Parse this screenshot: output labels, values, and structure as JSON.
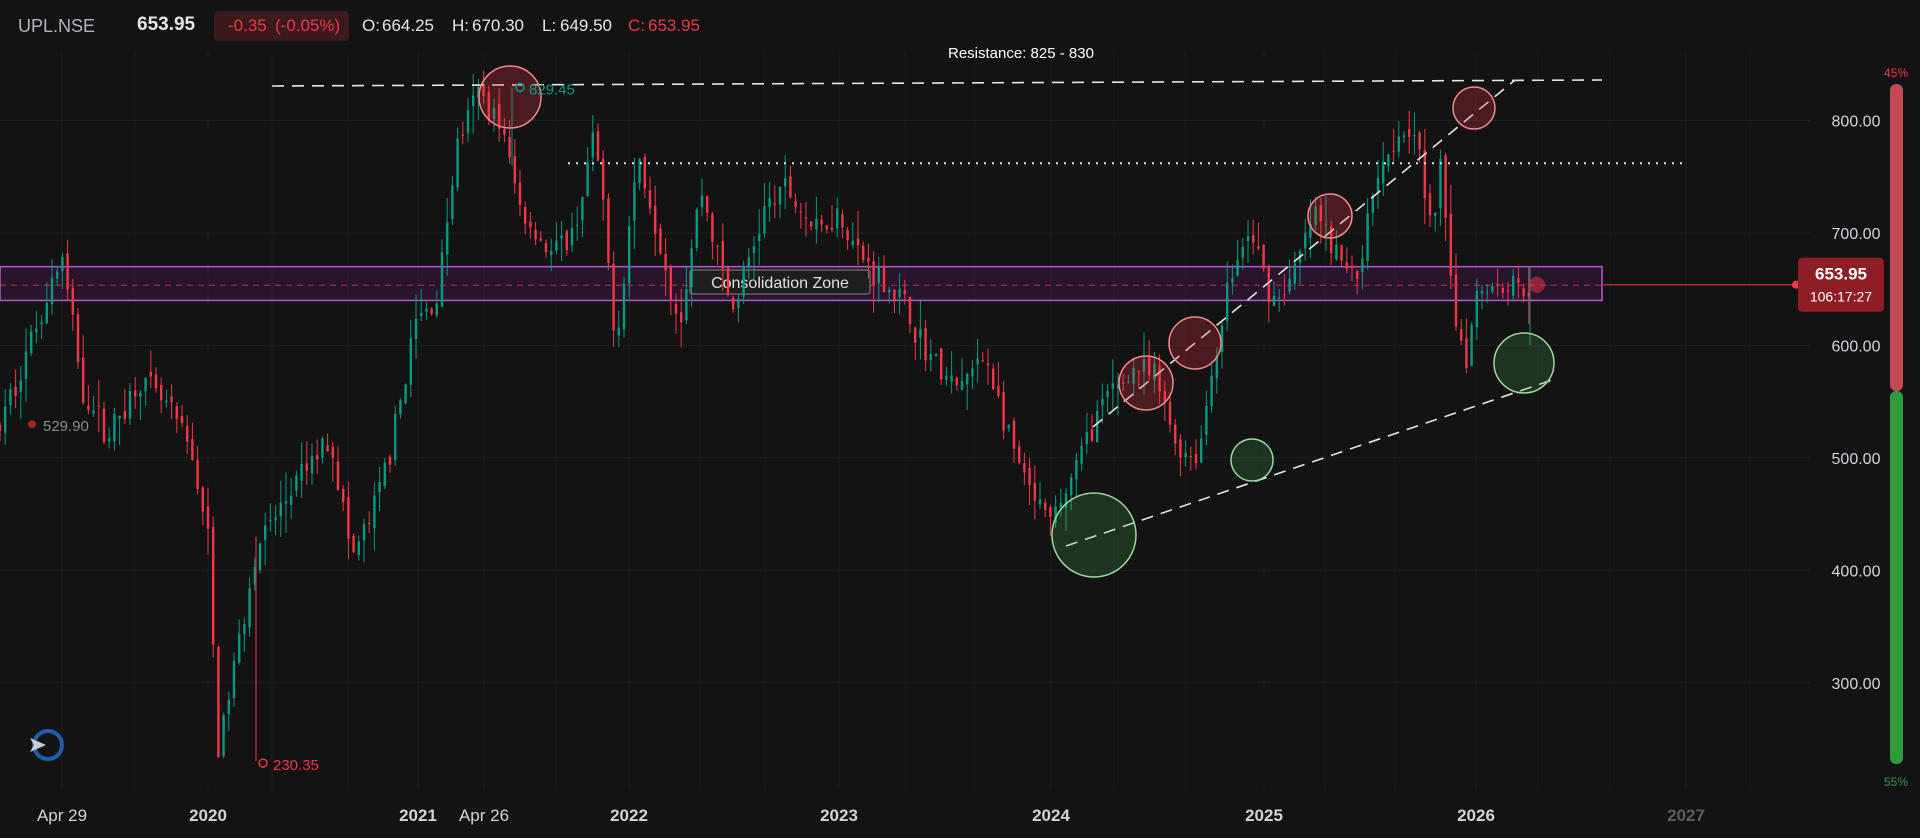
{
  "header": {
    "symbol": "UPL.NSE",
    "last": "653.95",
    "change": "-0.35",
    "change_pct": "(-0.05%)",
    "open_label": "O:",
    "open": "664.25",
    "high_label": "H:",
    "high": "670.30",
    "low_label": "L:",
    "low": "649.50",
    "close_label": "C:",
    "close": "653.95"
  },
  "chart_data": {
    "type": "candlestick",
    "x_labels": [
      "Apr 29",
      "2020",
      "2021",
      "Apr 26",
      "2022",
      "2023",
      "2024",
      "2025",
      "2026",
      "2027"
    ],
    "y_ticks": [
      "800.00",
      "700.00",
      "600.00",
      "500.00",
      "400.00",
      "300.00"
    ],
    "y_tick_values": [
      800,
      700,
      600,
      500,
      400,
      300
    ],
    "ylim": [
      230,
      845
    ],
    "xlim": [
      2019.2,
      2027.8
    ],
    "price_label": "653.95",
    "countdown": "106:17:27",
    "current_price": 653.95,
    "annotations": {
      "high_label": "829.45",
      "high_value": 829.45,
      "low_label": "230.35",
      "low_value": 230.35,
      "left_label": "529.90",
      "left_value": 529.9,
      "zone_label": "Consolidation Zone",
      "zone_range": [
        640,
        670
      ],
      "resistance_label": "Resistance: 825 - 830",
      "dotted_level": 762
    },
    "pct_top": "45%",
    "pct_bottom": "55%",
    "colors": {
      "up": "#089981",
      "down": "#f23645",
      "zone": "#9c27b0",
      "background": "#131313"
    },
    "path": [
      [
        2019.2,
        480
      ],
      [
        2019.35,
        560
      ],
      [
        2019.5,
        640
      ],
      [
        2019.58,
        680
      ],
      [
        2019.68,
        560
      ],
      [
        2019.8,
        520
      ],
      [
        2019.95,
        570
      ],
      [
        2020.1,
        540
      ],
      [
        2020.2,
        500
      ],
      [
        2020.27,
        430
      ],
      [
        2020.32,
        240
      ],
      [
        2020.38,
        300
      ],
      [
        2020.5,
        420
      ],
      [
        2020.7,
        480
      ],
      [
        2020.85,
        520
      ],
      [
        2020.95,
        410
      ],
      [
        2021.05,
        450
      ],
      [
        2021.15,
        520
      ],
      [
        2021.25,
        620
      ],
      [
        2021.35,
        640
      ],
      [
        2021.45,
        780
      ],
      [
        2021.55,
        825
      ],
      [
        2021.65,
        800
      ],
      [
        2021.75,
        720
      ],
      [
        2021.9,
        680
      ],
      [
        2022.0,
        700
      ],
      [
        2022.1,
        790
      ],
      [
        2022.2,
        600
      ],
      [
        2022.3,
        770
      ],
      [
        2022.4,
        700
      ],
      [
        2022.5,
        620
      ],
      [
        2022.6,
        740
      ],
      [
        2022.75,
        630
      ],
      [
        2022.9,
        720
      ],
      [
        2023.0,
        740
      ],
      [
        2023.15,
        700
      ],
      [
        2023.25,
        720
      ],
      [
        2023.35,
        680
      ],
      [
        2023.45,
        660
      ],
      [
        2023.55,
        640
      ],
      [
        2023.65,
        600
      ],
      [
        2023.8,
        560
      ],
      [
        2023.95,
        590
      ],
      [
        2024.05,
        520
      ],
      [
        2024.15,
        470
      ],
      [
        2024.25,
        440
      ],
      [
        2024.35,
        480
      ],
      [
        2024.45,
        530
      ],
      [
        2024.55,
        560
      ],
      [
        2024.65,
        580
      ],
      [
        2024.75,
        570
      ],
      [
        2024.85,
        510
      ],
      [
        2024.95,
        500
      ],
      [
        2025.0,
        560
      ],
      [
        2025.1,
        660
      ],
      [
        2025.2,
        700
      ],
      [
        2025.3,
        640
      ],
      [
        2025.4,
        660
      ],
      [
        2025.5,
        720
      ],
      [
        2025.6,
        680
      ],
      [
        2025.7,
        660
      ],
      [
        2025.8,
        760
      ],
      [
        2025.9,
        790
      ],
      [
        2025.97,
        800
      ],
      [
        2026.05,
        700
      ],
      [
        2026.1,
        760
      ],
      [
        2026.17,
        620
      ],
      [
        2026.22,
        590
      ],
      [
        2026.27,
        654
      ]
    ]
  }
}
